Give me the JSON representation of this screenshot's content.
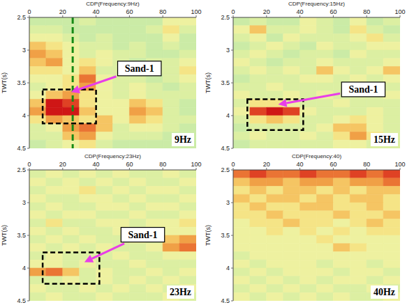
{
  "chart_data": [
    {
      "type": "heatmap",
      "title": "CDP(Frequency:9Hz)",
      "y_label": "TWT(s)",
      "label": "9Hz",
      "xlim": [
        0,
        100
      ],
      "ylim": [
        2.5,
        4.5
      ],
      "xticks": [
        0,
        20,
        40,
        60,
        80,
        100
      ],
      "yticks": [
        2.5,
        3,
        3.5,
        4,
        4.5
      ],
      "zlim": [
        0,
        9
      ],
      "x_edges": [
        0,
        10,
        20,
        30,
        40,
        50,
        60,
        70,
        80,
        90,
        100
      ],
      "y_edges": [
        2.5,
        2.625,
        2.75,
        2.875,
        3,
        3.125,
        3.25,
        3.375,
        3.5,
        3.625,
        3.75,
        3.875,
        4,
        4.125,
        4.25,
        4.375,
        4.5
      ],
      "cells": [
        [
          1,
          1,
          1,
          2,
          1,
          1,
          1,
          1,
          3,
          3
        ],
        [
          2,
          2,
          1,
          1,
          1,
          1,
          1,
          2,
          4,
          2
        ],
        [
          3,
          3,
          2,
          1,
          2,
          1,
          1,
          1,
          3,
          1
        ],
        [
          5,
          4,
          3,
          2,
          2,
          1,
          2,
          1,
          2,
          1
        ],
        [
          6,
          5,
          3,
          2,
          3,
          2,
          2,
          1,
          1,
          2
        ],
        [
          5,
          6,
          3,
          4,
          3,
          2,
          1,
          2,
          2,
          3
        ],
        [
          4,
          4,
          3,
          5,
          2,
          2,
          2,
          2,
          2,
          4
        ],
        [
          3,
          3,
          4,
          7,
          3,
          2,
          2,
          1,
          2,
          3
        ],
        [
          2,
          3,
          4,
          6,
          3,
          2,
          3,
          2,
          1,
          2
        ],
        [
          3,
          5,
          6,
          4,
          3,
          2,
          3,
          2,
          2,
          2
        ],
        [
          5,
          9,
          8,
          4,
          3,
          3,
          5,
          4,
          2,
          1
        ],
        [
          6,
          9,
          9,
          5,
          3,
          3,
          6,
          5,
          2,
          1
        ],
        [
          4,
          6,
          5,
          4,
          5,
          3,
          5,
          4,
          2,
          2
        ],
        [
          2,
          3,
          6,
          7,
          5,
          2,
          3,
          3,
          2,
          1
        ],
        [
          2,
          2,
          5,
          6,
          3,
          2,
          2,
          2,
          1,
          1
        ],
        [
          1,
          2,
          3,
          4,
          2,
          1,
          1,
          1,
          1,
          1
        ]
      ],
      "vline": {
        "x": 26
      },
      "box": {
        "x": [
          8,
          40
        ],
        "y": [
          3.6,
          4.12
        ]
      },
      "annotations": [
        {
          "text": "Sand-1",
          "text_x": 66,
          "text_y": 3.28,
          "x": 25,
          "y": 3.64
        }
      ]
    },
    {
      "type": "heatmap",
      "title": "CDP(Frequency:15Hz)",
      "y_label": "TWT(s)",
      "label": "15Hz",
      "xlim": [
        0,
        100
      ],
      "ylim": [
        2.5,
        4.5
      ],
      "xticks": [
        0,
        20,
        40,
        60,
        80,
        100
      ],
      "yticks": [
        2.5,
        3,
        3.5,
        4,
        4.5
      ],
      "zlim": [
        0,
        9
      ],
      "x_edges": [
        0,
        10,
        20,
        30,
        40,
        50,
        60,
        70,
        80,
        90,
        100
      ],
      "y_edges": [
        2.5,
        2.625,
        2.75,
        2.875,
        3,
        3.125,
        3.25,
        3.375,
        3.5,
        3.625,
        3.75,
        3.875,
        4,
        4.125,
        4.25,
        4.375,
        4.5
      ],
      "cells": [
        [
          1,
          2,
          1,
          1,
          3,
          2,
          1,
          3,
          1,
          2
        ],
        [
          3,
          5,
          2,
          2,
          3,
          2,
          1,
          4,
          2,
          1
        ],
        [
          2,
          3,
          1,
          3,
          2,
          2,
          2,
          3,
          4,
          2
        ],
        [
          1,
          2,
          3,
          2,
          1,
          3,
          2,
          2,
          3,
          3
        ],
        [
          2,
          3,
          2,
          1,
          2,
          2,
          1,
          3,
          2,
          2
        ],
        [
          3,
          2,
          1,
          2,
          2,
          3,
          2,
          2,
          2,
          3
        ],
        [
          2,
          3,
          2,
          3,
          2,
          5,
          3,
          2,
          3,
          5
        ],
        [
          1,
          2,
          2,
          2,
          3,
          3,
          2,
          3,
          2,
          3
        ],
        [
          2,
          2,
          3,
          2,
          2,
          2,
          2,
          2,
          3,
          2
        ],
        [
          3,
          2,
          2,
          3,
          2,
          3,
          2,
          2,
          2,
          3
        ],
        [
          2,
          4,
          4,
          3,
          2,
          2,
          3,
          2,
          2,
          2
        ],
        [
          3,
          8,
          9,
          8,
          3,
          2,
          2,
          2,
          3,
          2
        ],
        [
          2,
          4,
          5,
          4,
          2,
          2,
          3,
          4,
          3,
          2
        ],
        [
          1,
          2,
          2,
          2,
          2,
          3,
          5,
          5,
          3,
          2
        ],
        [
          2,
          3,
          2,
          2,
          3,
          2,
          4,
          6,
          4,
          2
        ],
        [
          1,
          2,
          2,
          2,
          2,
          2,
          3,
          3,
          2,
          2
        ]
      ],
      "box": {
        "x": [
          8.5,
          42
        ],
        "y": [
          3.75,
          4.22
        ]
      },
      "annotations": [
        {
          "text": "Sand-1",
          "text_x": 78,
          "text_y": 3.6,
          "x": 27,
          "y": 3.83
        }
      ]
    },
    {
      "type": "heatmap",
      "title": "CDP(Frequency:23Hz)",
      "y_label": "TWT(s)",
      "label": "23Hz",
      "xlim": [
        0,
        100
      ],
      "ylim": [
        2.5,
        4.5
      ],
      "xticks": [
        0,
        20,
        40,
        60,
        80,
        100
      ],
      "yticks": [
        2.5,
        3,
        3.5,
        4,
        4.5
      ],
      "zlim": [
        0,
        9
      ],
      "x_edges": [
        0,
        10,
        20,
        30,
        40,
        50,
        60,
        70,
        80,
        90,
        100
      ],
      "y_edges": [
        2.5,
        2.625,
        2.75,
        2.875,
        3,
        3.125,
        3.25,
        3.375,
        3.5,
        3.625,
        3.75,
        3.875,
        4,
        4.125,
        4.25,
        4.375,
        4.5
      ],
      "cells": [
        [
          2,
          3,
          2,
          3,
          2,
          3,
          2,
          2,
          3,
          2
        ],
        [
          3,
          2,
          3,
          2,
          3,
          2,
          3,
          2,
          2,
          3
        ],
        [
          2,
          3,
          3,
          4,
          2,
          3,
          2,
          3,
          3,
          2
        ],
        [
          3,
          2,
          2,
          3,
          3,
          2,
          3,
          2,
          2,
          3
        ],
        [
          2,
          3,
          2,
          2,
          3,
          3,
          2,
          3,
          3,
          2
        ],
        [
          3,
          2,
          3,
          3,
          2,
          2,
          3,
          2,
          2,
          3
        ],
        [
          2,
          4,
          2,
          2,
          3,
          3,
          2,
          3,
          3,
          4
        ],
        [
          3,
          2,
          3,
          2,
          2,
          3,
          2,
          2,
          3,
          3
        ],
        [
          2,
          3,
          2,
          3,
          2,
          2,
          3,
          2,
          5,
          6
        ],
        [
          3,
          2,
          3,
          2,
          3,
          2,
          2,
          3,
          6,
          7
        ],
        [
          2,
          3,
          2,
          2,
          2,
          3,
          2,
          2,
          3,
          3
        ],
        [
          3,
          3,
          2,
          3,
          2,
          2,
          3,
          2,
          2,
          2
        ],
        [
          6,
          7,
          5,
          2,
          3,
          2,
          2,
          3,
          2,
          3
        ],
        [
          2,
          2,
          3,
          2,
          3,
          2,
          3,
          2,
          3,
          2
        ],
        [
          3,
          2,
          2,
          3,
          2,
          3,
          2,
          3,
          2,
          3
        ],
        [
          2,
          3,
          2,
          2,
          3,
          2,
          2,
          2,
          3,
          2
        ]
      ],
      "box": {
        "x": [
          8,
          42
        ],
        "y": [
          3.76,
          4.24
        ]
      },
      "annotations": [
        {
          "text": "Sand-1",
          "text_x": 68,
          "text_y": 3.49,
          "x": 33,
          "y": 3.91
        }
      ]
    },
    {
      "type": "heatmap",
      "title": "CDP(Frequency:40)",
      "y_label": "TWT(s)",
      "label": "40Hz",
      "xlim": [
        0,
        100
      ],
      "ylim": [
        2.5,
        4.5
      ],
      "xticks": [
        0,
        20,
        40,
        60,
        80,
        100
      ],
      "yticks": [
        2.5,
        3,
        3.5,
        4,
        4.5
      ],
      "zlim": [
        0,
        9
      ],
      "x_edges": [
        0,
        10,
        20,
        30,
        40,
        50,
        60,
        70,
        80,
        90,
        100
      ],
      "y_edges": [
        2.5,
        2.625,
        2.75,
        2.875,
        3,
        3.125,
        3.25,
        3.375,
        3.5,
        3.625,
        3.75,
        3.875,
        4,
        4.125,
        4.25,
        4.375,
        4.5
      ],
      "cells": [
        [
          7,
          8,
          7,
          7,
          8,
          7,
          7,
          8,
          7,
          8
        ],
        [
          5,
          6,
          6,
          5,
          6,
          6,
          5,
          6,
          6,
          7
        ],
        [
          4,
          5,
          4,
          5,
          5,
          4,
          5,
          4,
          5,
          5
        ],
        [
          5,
          4,
          5,
          5,
          4,
          5,
          4,
          5,
          5,
          4
        ],
        [
          4,
          5,
          4,
          4,
          5,
          5,
          4,
          4,
          5,
          4
        ],
        [
          4,
          4,
          5,
          4,
          4,
          4,
          5,
          4,
          4,
          5
        ],
        [
          3,
          4,
          4,
          5,
          4,
          4,
          3,
          4,
          5,
          4
        ],
        [
          3,
          3,
          4,
          3,
          4,
          3,
          4,
          3,
          4,
          4
        ],
        [
          3,
          3,
          3,
          3,
          3,
          4,
          3,
          3,
          3,
          3
        ],
        [
          3,
          3,
          3,
          3,
          3,
          3,
          5,
          4,
          3,
          3
        ],
        [
          2,
          3,
          3,
          3,
          3,
          3,
          3,
          3,
          3,
          3
        ],
        [
          3,
          2,
          3,
          3,
          3,
          2,
          3,
          3,
          2,
          3
        ],
        [
          2,
          3,
          2,
          3,
          3,
          3,
          2,
          3,
          3,
          2
        ],
        [
          3,
          2,
          3,
          2,
          3,
          2,
          3,
          3,
          2,
          3
        ],
        [
          2,
          3,
          2,
          3,
          2,
          3,
          2,
          2,
          3,
          2
        ],
        [
          3,
          2,
          3,
          2,
          3,
          2,
          3,
          2,
          2,
          3
        ]
      ]
    }
  ]
}
